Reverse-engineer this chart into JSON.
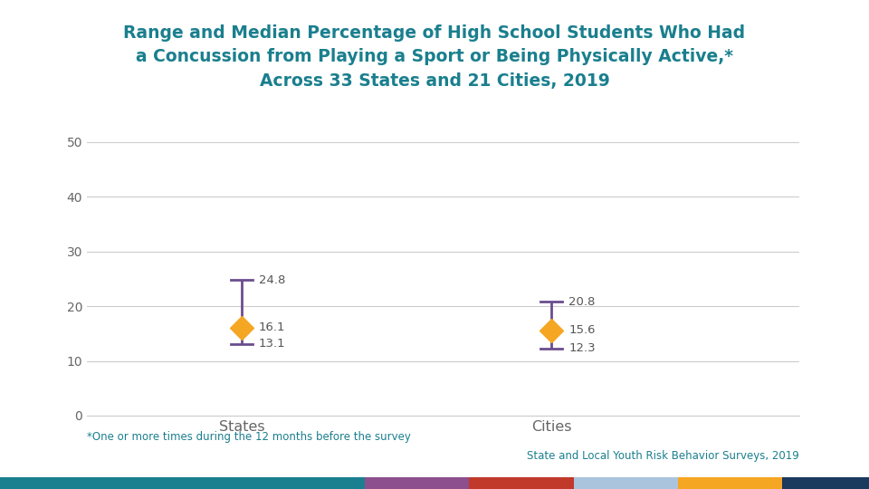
{
  "title": "Range and Median Percentage of High School Students Who Had\na Concussion from Playing a Sport or Being Physically Active,*\nAcross 33 States and 21 Cities, 2019",
  "title_color": "#1a7f8e",
  "title_fontsize": 13.5,
  "categories": [
    "States",
    "Cities"
  ],
  "x_positions": [
    1,
    2
  ],
  "medians": [
    16.1,
    15.6
  ],
  "range_high": [
    24.8,
    20.8
  ],
  "range_low": [
    13.1,
    12.3
  ],
  "ylim": [
    0,
    50
  ],
  "yticks": [
    0,
    10,
    20,
    30,
    40,
    50
  ],
  "range_color": "#6b4d8e",
  "median_color": "#f5a623",
  "line_width": 2.0,
  "marker_size": 13,
  "annotation_color": "#555555",
  "annotation_fontsize": 9.5,
  "footnote": "*One or more times during the 12 months before the survey",
  "footnote_color": "#1a7f8e",
  "source": "State and Local Youth Risk Behavior Surveys, 2019",
  "source_color": "#1a7f8e",
  "background_color": "#ffffff",
  "bar_colors": [
    "#1a7f8e",
    "#8e4f8e",
    "#c0392b",
    "#aac4de",
    "#f5a623",
    "#1a3a5e"
  ],
  "bar_widths": [
    0.42,
    0.12,
    0.12,
    0.12,
    0.12,
    0.1
  ],
  "grid_color": "#cccccc",
  "tick_color": "#666666",
  "xlabel_fontsize": 11.5
}
